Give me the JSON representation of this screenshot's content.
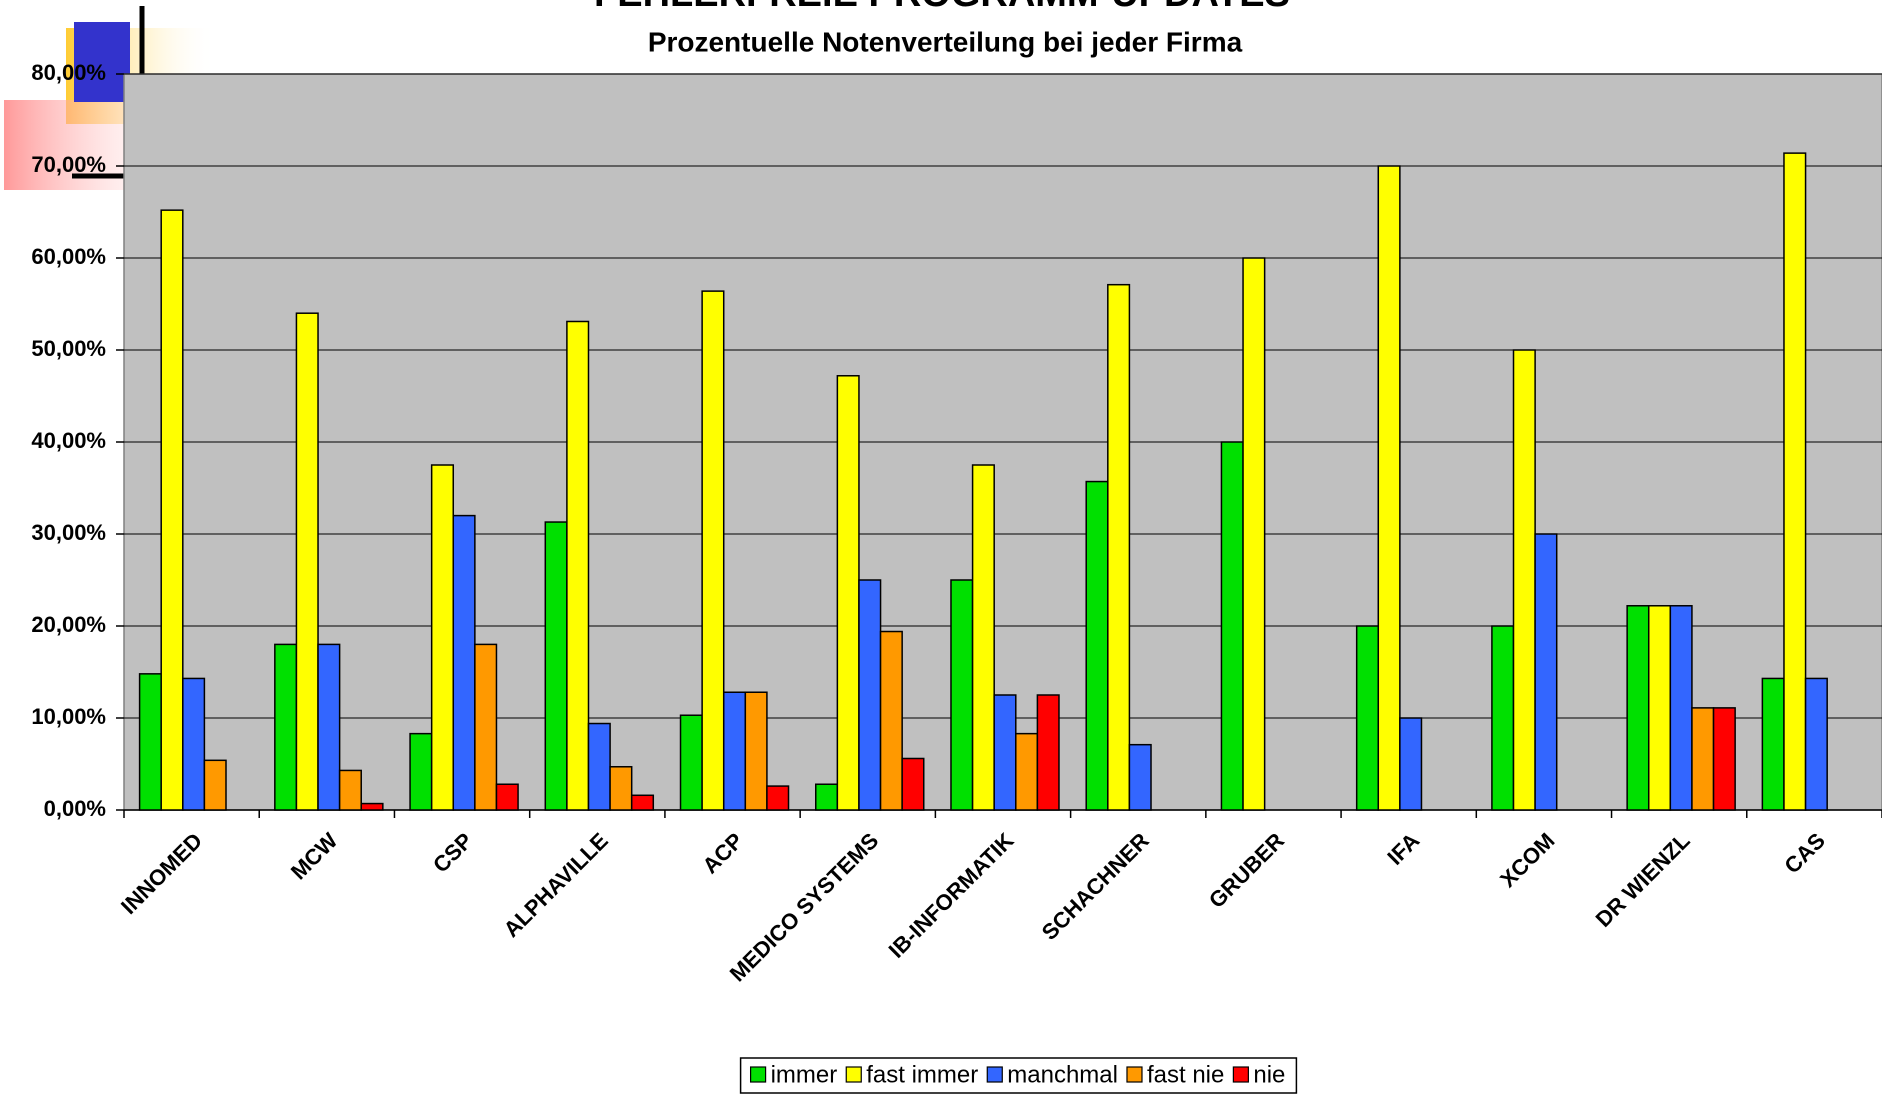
{
  "chart_data": {
    "type": "bar",
    "title": "FEHLERFREIE PROGRAMM-UPDATES",
    "subtitle": "Prozentuelle Notenverteilung bei jeder Firma",
    "categories": [
      "INNOMED",
      "MCW",
      "CSP",
      "ALPHAVILLE",
      "ACP",
      "MEDICO SYSTEMS",
      "IB-INFORMATIK",
      "SCHACHNER",
      "GRUBER",
      "IFA",
      "XCOM",
      "DR WIENZL",
      "CAS"
    ],
    "series": [
      {
        "name": "immer",
        "color": "#00e000",
        "values": [
          14.8,
          18,
          8.3,
          31.3,
          10.3,
          2.8,
          25,
          35.7,
          40,
          20,
          20,
          22.2,
          14.3
        ]
      },
      {
        "name": "fast immer",
        "color": "#ffff00",
        "values": [
          65.2,
          54,
          37.5,
          53.1,
          56.4,
          47.2,
          37.5,
          57.1,
          60,
          70,
          50,
          22.2,
          71.4
        ]
      },
      {
        "name": "manchmal",
        "color": "#3366ff",
        "values": [
          14.3,
          18,
          32,
          9.4,
          12.8,
          25,
          12.5,
          7.1,
          null,
          10,
          30,
          22.2,
          14.3
        ]
      },
      {
        "name": "fast nie",
        "color": "#ff9900",
        "values": [
          5.4,
          4.3,
          18,
          4.7,
          12.8,
          19.4,
          8.3,
          null,
          null,
          null,
          null,
          11.1,
          null
        ]
      },
      {
        "name": "nie",
        "color": "#ff0000",
        "values": [
          null,
          0.7,
          2.8,
          1.6,
          2.6,
          5.6,
          12.5,
          null,
          null,
          null,
          null,
          11.1,
          null
        ]
      }
    ],
    "ylim": [
      0,
      80
    ],
    "yticks": [
      {
        "value": 0,
        "label": "0,00%"
      },
      {
        "value": 10,
        "label": "10,00%"
      },
      {
        "value": 20,
        "label": "20,00%"
      },
      {
        "value": 30,
        "label": "30,00%"
      },
      {
        "value": 40,
        "label": "40,00%"
      },
      {
        "value": 50,
        "label": "50,00%"
      },
      {
        "value": 60,
        "label": "60,00%"
      },
      {
        "value": 70,
        "label": "70,00%"
      },
      {
        "value": 80,
        "label": "80,00%"
      }
    ],
    "grid": true,
    "legend": "bottom"
  }
}
